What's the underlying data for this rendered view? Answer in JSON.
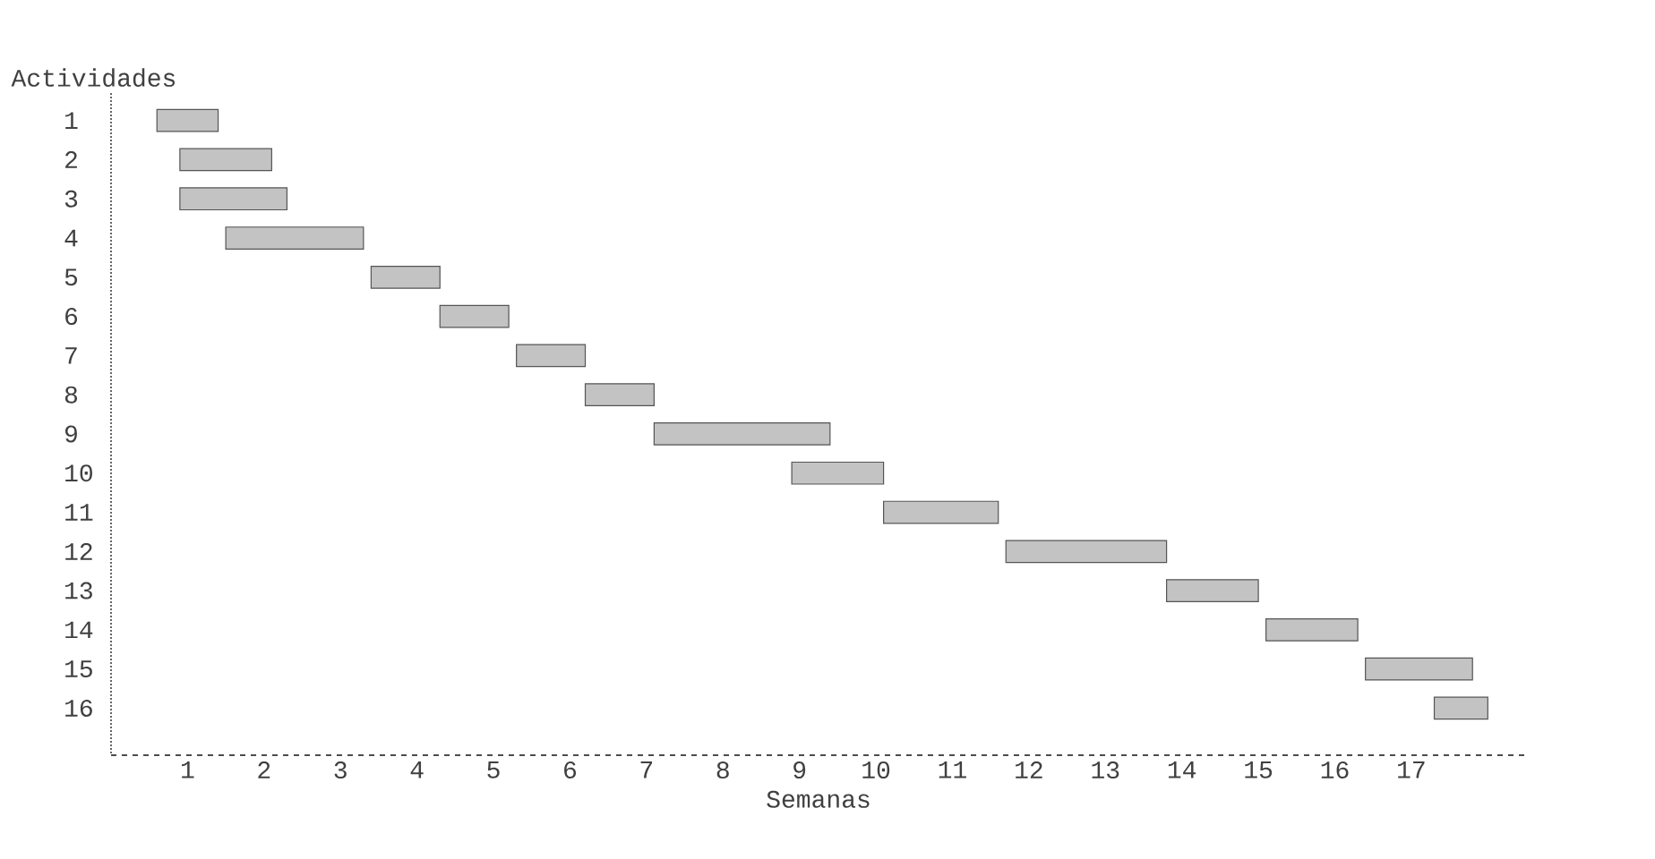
{
  "chart_data": {
    "type": "bar",
    "orientation": "horizontal",
    "ylabel": "Actividades",
    "xlabel": "Semanas",
    "categories": [
      "1",
      "2",
      "3",
      "4",
      "5",
      "6",
      "7",
      "8",
      "9",
      "10",
      "11",
      "12",
      "13",
      "14",
      "15",
      "16"
    ],
    "base": [
      0.6,
      0.9,
      0.9,
      1.5,
      3.4,
      4.3,
      5.3,
      6.2,
      7.1,
      8.9,
      10.1,
      11.7,
      13.8,
      15.1,
      16.4,
      17.3
    ],
    "values": [
      0.8,
      1.2,
      1.4,
      1.8,
      0.9,
      0.9,
      0.9,
      0.9,
      2.3,
      1.2,
      1.5,
      2.1,
      1.2,
      1.2,
      1.4,
      0.7
    ],
    "color": "#555555",
    "xlim": [
      0,
      18.5
    ],
    "xticks": [
      1,
      2,
      3,
      4,
      5,
      6,
      7,
      8,
      9,
      10,
      11,
      12,
      13,
      14,
      15,
      16,
      17
    ],
    "grid": false
  }
}
